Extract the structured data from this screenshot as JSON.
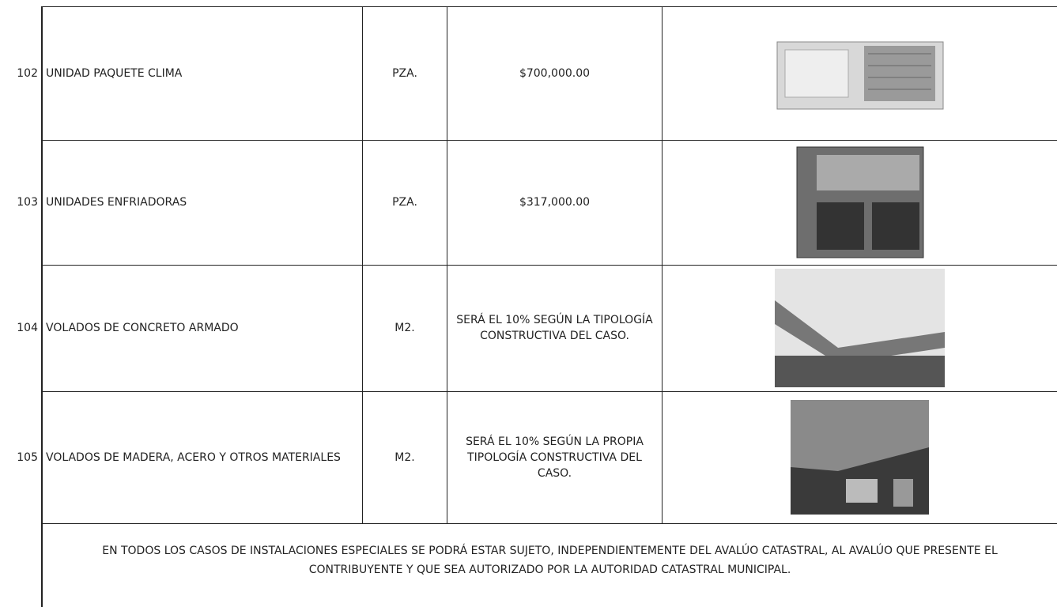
{
  "table": {
    "rows": [
      {
        "number": "102",
        "description": "UNIDAD PAQUETE CLIMA",
        "unit": "PZA.",
        "value": "$700,000.00"
      },
      {
        "number": "103",
        "description": "UNIDADES ENFRIADORAS",
        "unit": "PZA.",
        "value": "$317,000.00"
      },
      {
        "number": "104",
        "description": "VOLADOS DE CONCRETO ARMADO",
        "unit": "M2.",
        "value": "SERÁ EL 10% SEGÚN LA TIPOLOGÍA CONSTRUCTIVA DEL CASO."
      },
      {
        "number": "105",
        "description": "VOLADOS DE MADERA, ACERO Y OTROS MATERIALES",
        "unit": "M2.",
        "value": "SERÁ EL 10% SEGÚN LA PROPIA TIPOLOGÍA CONSTRUCTIVA DEL CASO."
      }
    ],
    "note": "EN TODOS LOS CASOS DE INSTALACIONES ESPECIALES SE PODRÁ ESTAR SUJETO, INDEPENDIENTEMENTE DEL AVALÚO CATASTRAL, AL AVALÚO QUE PRESENTE EL CONTRIBUYENTE Y QUE SEA AUTORIZADO POR LA AUTORIDAD CATASTRAL MUNICIPAL."
  }
}
